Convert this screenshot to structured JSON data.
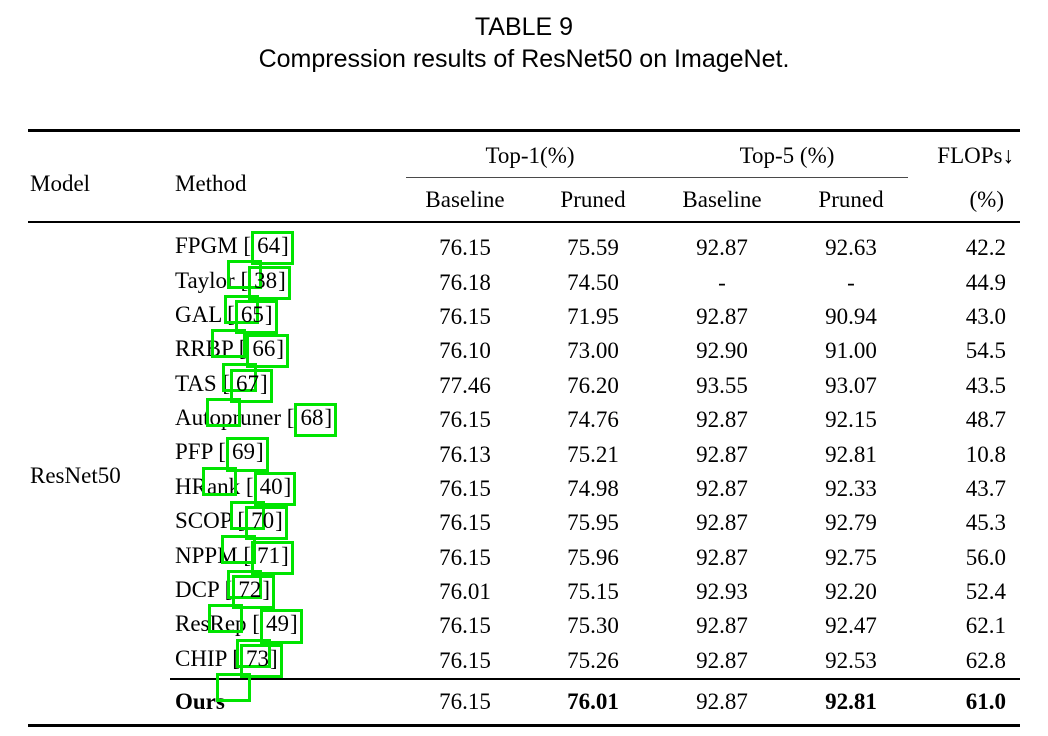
{
  "caption": {
    "line1": "TABLE 9",
    "line2": "Compression results of ResNet50 on ImageNet."
  },
  "colors": {
    "link_box_green": "#00e400",
    "text": "#000000"
  },
  "table": {
    "model_label": "ResNet50",
    "headers": {
      "model": "Model",
      "method": "Method",
      "top1_group": "Top-1(%)",
      "top5_group": "Top-5 (%)",
      "flops_group": "FLOPs↓",
      "flops_unit": "(%)",
      "sub_baseline1": "Baseline",
      "sub_pruned1": "Pruned",
      "sub_baseline2": "Baseline",
      "sub_pruned2": "Pruned"
    },
    "rows": [
      {
        "method": "FPGM",
        "cite": "64",
        "ghost": true,
        "values": [
          "76.15",
          "75.59",
          "92.87",
          "92.63",
          "42.2"
        ]
      },
      {
        "method": "Taylor",
        "cite": "38",
        "ghost": true,
        "values": [
          "76.18",
          "74.50",
          "-",
          "-",
          "44.9"
        ]
      },
      {
        "method": "GAL",
        "cite": "65",
        "ghost": true,
        "values": [
          "76.15",
          "71.95",
          "92.87",
          "90.94",
          "43.0"
        ]
      },
      {
        "method": "RRBP",
        "cite": "66",
        "ghost": true,
        "values": [
          "76.10",
          "73.00",
          "92.90",
          "91.00",
          "54.5"
        ]
      },
      {
        "method": "TAS",
        "cite": "67",
        "ghost": true,
        "values": [
          "77.46",
          "76.20",
          "93.55",
          "93.07",
          "43.5"
        ]
      },
      {
        "method": "Autopruner",
        "cite": "68",
        "ghost": false,
        "values": [
          "76.15",
          "74.76",
          "92.87",
          "92.15",
          "48.7"
        ]
      },
      {
        "method": "PFP",
        "cite": "69",
        "ghost": true,
        "values": [
          "76.13",
          "75.21",
          "92.87",
          "92.81",
          "10.8"
        ]
      },
      {
        "method": "HRank",
        "cite": "40",
        "ghost": true,
        "values": [
          "76.15",
          "74.98",
          "92.87",
          "92.33",
          "43.7"
        ]
      },
      {
        "method": "SCOP",
        "cite": "70",
        "ghost": true,
        "values": [
          "76.15",
          "75.95",
          "92.87",
          "92.79",
          "45.3"
        ]
      },
      {
        "method": "NPPM",
        "cite": "71",
        "ghost": true,
        "values": [
          "76.15",
          "75.96",
          "92.87",
          "92.75",
          "56.0"
        ]
      },
      {
        "method": "DCP",
        "cite": "72",
        "ghost": true,
        "values": [
          "76.01",
          "75.15",
          "92.93",
          "92.20",
          "52.4"
        ]
      },
      {
        "method": "ResRep",
        "cite": "49",
        "ghost": true,
        "values": [
          "76.15",
          "75.30",
          "92.87",
          "92.47",
          "62.1"
        ]
      },
      {
        "method": "CHIP",
        "cite": "73",
        "ghost": true,
        "values": [
          "76.15",
          "75.26",
          "92.87",
          "92.53",
          "62.8"
        ]
      }
    ],
    "ours": {
      "label": "Ours",
      "values": [
        "76.15",
        "76.01",
        "92.87",
        "92.81",
        "61.0"
      ],
      "bold": [
        false,
        true,
        false,
        true,
        true
      ]
    }
  }
}
